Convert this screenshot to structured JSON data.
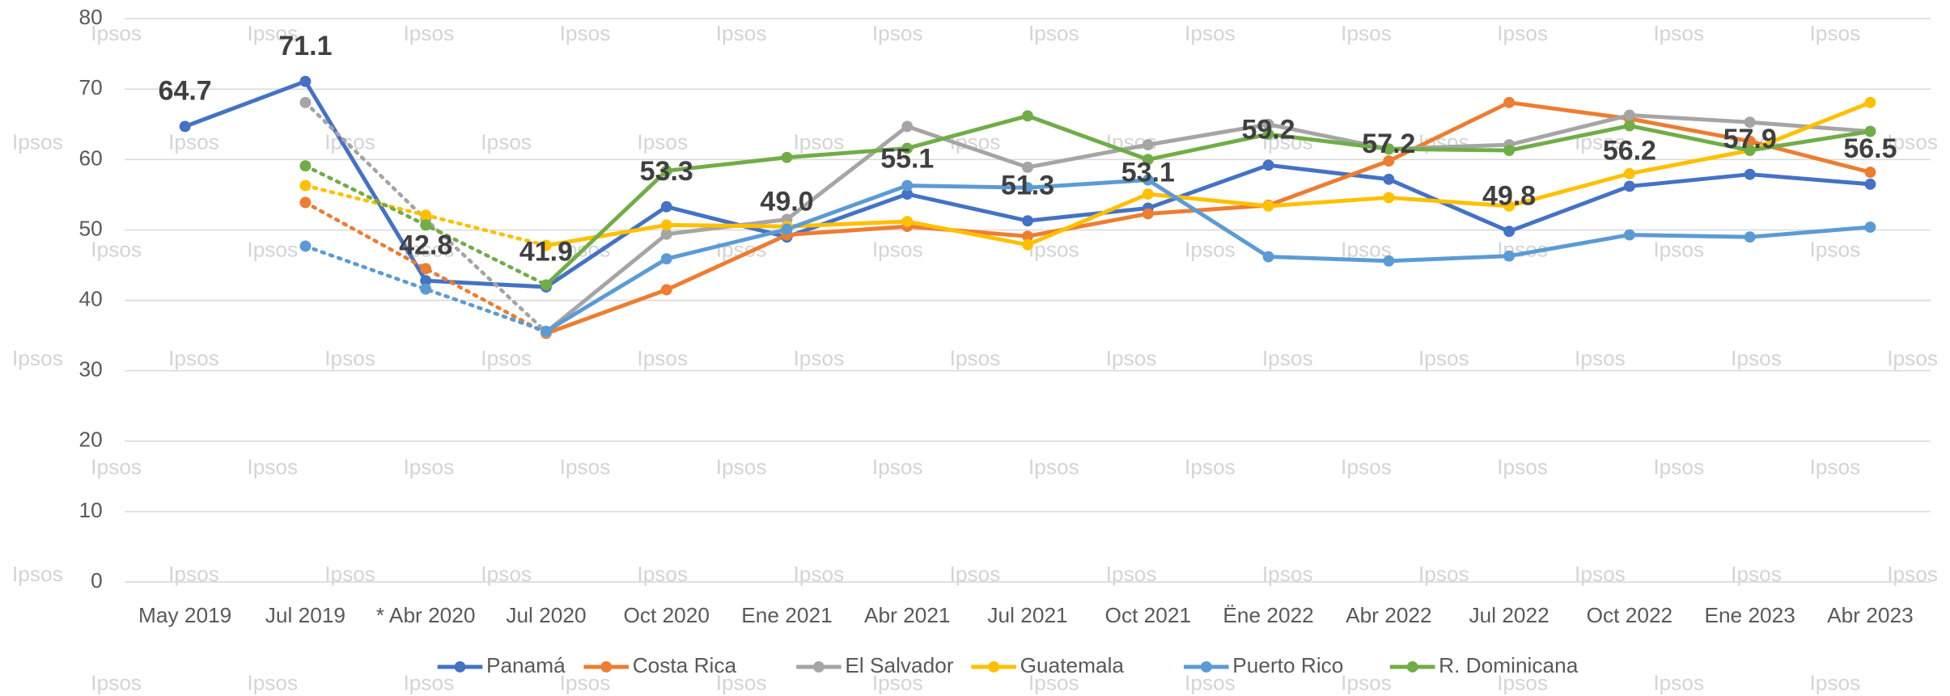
{
  "chart_data": {
    "type": "line",
    "watermark": "Ipsos",
    "categories": [
      "May 2019",
      "Jul 2019",
      "* Abr 2020",
      "Jul 2020",
      "Oct 2020",
      "Ene 2021",
      "Abr 2021",
      "Jul 2021",
      "Oct 2021",
      "Ëne 2022",
      "Abr 2022",
      "Jul 2022",
      "Oct 2022",
      "Ene 2023",
      "Abr 2023"
    ],
    "series": [
      {
        "name": "Panamá",
        "color": "#4472c4",
        "values": [
          64.7,
          71.1,
          42.8,
          41.9,
          53.3,
          49.0,
          55.1,
          51.3,
          53.1,
          59.2,
          57.2,
          49.8,
          56.2,
          57.9,
          56.5
        ],
        "value_labels": [
          "64.7",
          "71.1",
          "42.8",
          "41.9",
          "53.3",
          "49.0",
          "55.1",
          "51.3",
          "53.1",
          "59.2",
          "57.2",
          "49.8",
          "56.2",
          "57.9",
          "56.5"
        ]
      },
      {
        "name": "Costa Rica",
        "color": "#ed7d31",
        "dotted_segments": [
          1,
          2
        ],
        "values": [
          null,
          53.9,
          44.5,
          35.3,
          41.5,
          49.3,
          50.5,
          49.1,
          52.3,
          53.5,
          59.8,
          68.1,
          65.8,
          62.6,
          58.2
        ]
      },
      {
        "name": "El Salvador",
        "color": "#a5a5a5",
        "dotted_segments": [
          1,
          2
        ],
        "values": [
          null,
          68.1,
          51.5,
          35.5,
          49.4,
          51.5,
          64.7,
          58.9,
          62.1,
          65.0,
          61.5,
          62.1,
          66.3,
          65.3,
          64.0
        ]
      },
      {
        "name": "Guatemala",
        "color": "#ffc000",
        "dotted_segments": [
          1,
          2
        ],
        "values": [
          null,
          56.3,
          52.1,
          47.8,
          50.7,
          50.5,
          51.2,
          47.9,
          55.1,
          53.4,
          54.6,
          53.4,
          58.0,
          61.3,
          68.1
        ]
      },
      {
        "name": "Puerto Rico",
        "color": "#5b9bd5",
        "dotted_segments": [
          1,
          2
        ],
        "values": [
          null,
          47.7,
          41.6,
          35.6,
          45.9,
          50.1,
          56.3,
          56.0,
          57.1,
          46.2,
          45.6,
          46.3,
          49.3,
          49.0,
          50.4
        ]
      },
      {
        "name": "R. Dominicana",
        "color": "#70ad47",
        "dotted_segments": [
          1,
          2
        ],
        "values": [
          null,
          59.1,
          50.7,
          42.2,
          58.4,
          60.3,
          61.6,
          66.2,
          60.0,
          63.6,
          61.5,
          61.3,
          64.8,
          61.3,
          64.0
        ]
      }
    ],
    "ylim": [
      0,
      80
    ],
    "yticks": [
      0,
      10,
      20,
      30,
      40,
      50,
      60,
      70,
      80
    ],
    "grid": true,
    "legend": "bottom"
  }
}
